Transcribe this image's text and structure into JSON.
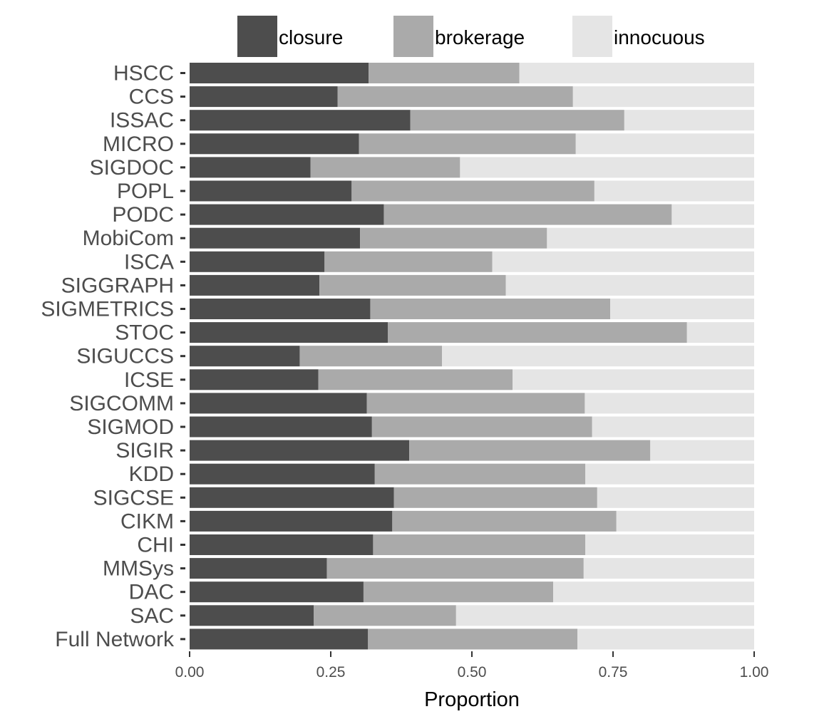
{
  "chart_data": {
    "type": "bar",
    "orientation": "horizontal",
    "stacked": true,
    "categories": [
      "HSCC",
      "CCS",
      "ISSAC",
      "MICRO",
      "SIGDOC",
      "POPL",
      "PODC",
      "MobiCom",
      "ISCA",
      "SIGGRAPH",
      "SIGMETRICS",
      "STOC",
      "SIGUCCS",
      "ICSE",
      "SIGCOMM",
      "SIGMOD",
      "SIGIR",
      "KDD",
      "SIGCSE",
      "CIKM",
      "CHI",
      "MMSys",
      "DAC",
      "SAC",
      "Full Network"
    ],
    "series": [
      {
        "name": "closure",
        "color": "#4d4d4d",
        "values": [
          0.317,
          0.262,
          0.391,
          0.3,
          0.214,
          0.287,
          0.344,
          0.302,
          0.239,
          0.23,
          0.32,
          0.351,
          0.195,
          0.228,
          0.314,
          0.323,
          0.389,
          0.328,
          0.362,
          0.359,
          0.325,
          0.243,
          0.308,
          0.22,
          0.316
        ]
      },
      {
        "name": "brokerage",
        "color": "#aaaaaa",
        "values": [
          0.267,
          0.417,
          0.379,
          0.384,
          0.265,
          0.43,
          0.51,
          0.331,
          0.297,
          0.33,
          0.425,
          0.53,
          0.252,
          0.344,
          0.386,
          0.39,
          0.427,
          0.373,
          0.36,
          0.397,
          0.376,
          0.455,
          0.336,
          0.252,
          0.371
        ]
      },
      {
        "name": "innocuous",
        "color": "#e5e5e5",
        "values": [
          0.416,
          0.321,
          0.23,
          0.316,
          0.521,
          0.283,
          0.146,
          0.367,
          0.464,
          0.44,
          0.255,
          0.119,
          0.553,
          0.428,
          0.3,
          0.287,
          0.184,
          0.299,
          0.278,
          0.244,
          0.299,
          0.302,
          0.356,
          0.528,
          0.313
        ]
      }
    ],
    "xlabel": "Proportion",
    "ylabel": "",
    "xlim": [
      0,
      1
    ],
    "x_ticks": [
      "0.00",
      "0.25",
      "0.50",
      "0.75",
      "1.00"
    ],
    "x_tick_values": [
      0,
      0.25,
      0.5,
      0.75,
      1.0
    ],
    "legend": {
      "position": "top",
      "entries": [
        "closure",
        "brokerage",
        "innocuous"
      ]
    },
    "grid": false
  }
}
